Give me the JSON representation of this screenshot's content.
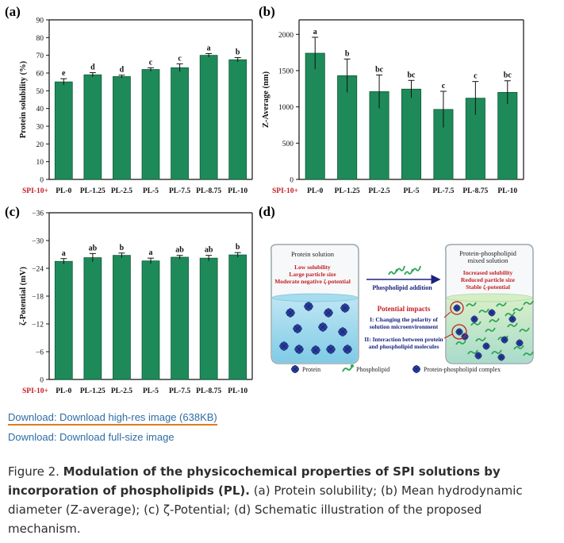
{
  "colors": {
    "bar": "#1e8a5a",
    "bar_edge": "#0f5a37",
    "red": "#c41e25",
    "axis": "#111111",
    "link": "#2e6da4",
    "underline": "#e07b22"
  },
  "chart_data": [
    {
      "panel": "(a)",
      "type": "bar",
      "xlabel_prefix": "SPI-10+",
      "categories": [
        "PL-0",
        "PL-1.25",
        "PL-2.5",
        "PL-5",
        "PL-7.5",
        "PL-8.75",
        "PL-10"
      ],
      "values": [
        55,
        59,
        58,
        62,
        63,
        70,
        67.5
      ],
      "errors": [
        1.8,
        1.2,
        0.8,
        1.0,
        2.2,
        1.0,
        1.2
      ],
      "letters": [
        "e",
        "d",
        "d",
        "c",
        "c",
        "a",
        "b"
      ],
      "ylabel": "Protein solubility (%)",
      "ylim": [
        0,
        90
      ],
      "yticks": [
        0,
        10,
        20,
        30,
        40,
        50,
        60,
        70,
        80,
        90
      ]
    },
    {
      "panel": "(b)",
      "type": "bar",
      "xlabel_prefix": "SPI-10+",
      "categories": [
        "PL-0",
        "PL-1.25",
        "PL-2.5",
        "PL-5",
        "PL-7.5",
        "PL-8.75",
        "PL-10"
      ],
      "values": [
        1740,
        1430,
        1210,
        1245,
        965,
        1120,
        1200
      ],
      "errors": [
        220,
        230,
        230,
        120,
        250,
        230,
        160
      ],
      "letters": [
        "a",
        "b",
        "bc",
        "bc",
        "c",
        "c",
        "bc"
      ],
      "ylabel": "Z-Average (nm)",
      "ylim": [
        0,
        2200
      ],
      "yticks": [
        0,
        500,
        1000,
        1500,
        2000
      ]
    },
    {
      "panel": "(c)",
      "type": "bar",
      "xlabel_prefix": "SPI-10+",
      "categories": [
        "PL-0",
        "PL-1.25",
        "PL-2.5",
        "PL-5",
        "PL-7.5",
        "PL-8.75",
        "PL-10"
      ],
      "values": [
        -25.5,
        -26.3,
        -26.8,
        -25.6,
        -26.4,
        -26.2,
        -26.9
      ],
      "errors": [
        0.6,
        0.9,
        0.5,
        0.6,
        0.4,
        0.6,
        0.5
      ],
      "letters": [
        "a",
        "ab",
        "b",
        "a",
        "ab",
        "ab",
        "b"
      ],
      "ylabel": "ζ-Potential (mV)",
      "ylim": [
        0,
        -36
      ],
      "yticks": [
        "0",
        "−6",
        "−12",
        "−18",
        "−24",
        "−30",
        "−36"
      ],
      "ytick_values": [
        0,
        -6,
        -12,
        -18,
        -24,
        -30,
        -36
      ]
    }
  ],
  "panel_labels": {
    "a": "(a)",
    "b": "(b)",
    "c": "(c)",
    "d": "(d)"
  },
  "schematic": {
    "left_title": "Protein solution",
    "left_lines": [
      "Low solubility",
      "Large particle size",
      "Moderate negative ζ-potential"
    ],
    "arrow_label": "Phospholipid addition",
    "impacts_title": "Potential impacts",
    "impact1_lines": [
      "I: Changing the polarity of",
      "solution microenvironment"
    ],
    "impact2_lines": [
      "II: Interaction between protein",
      "and phospholipid molecules"
    ],
    "right_title_lines": [
      "Protein-phospholipid",
      "mixed solution"
    ],
    "right_lines": [
      "Increased solubility",
      "Reduced particle size",
      "Stable ζ-potential"
    ],
    "legend": [
      "Protein",
      "Phospholipid",
      "Protein-phospholipid complex"
    ]
  },
  "links": {
    "high_res": "Download: Download high-res image (638KB)",
    "full_size": "Download: Download full-size image"
  },
  "caption": {
    "prefix": "Figure 2. ",
    "bold": "Modulation of the physicochemical properties of SPI solutions by incorporation of phospholipids (PL).",
    "rest": " (a) Protein solubility; (b) Mean hydrodynamic diameter (Z-average); (c) ζ-Potential; (d) Schematic illustration of the proposed mechanism."
  }
}
